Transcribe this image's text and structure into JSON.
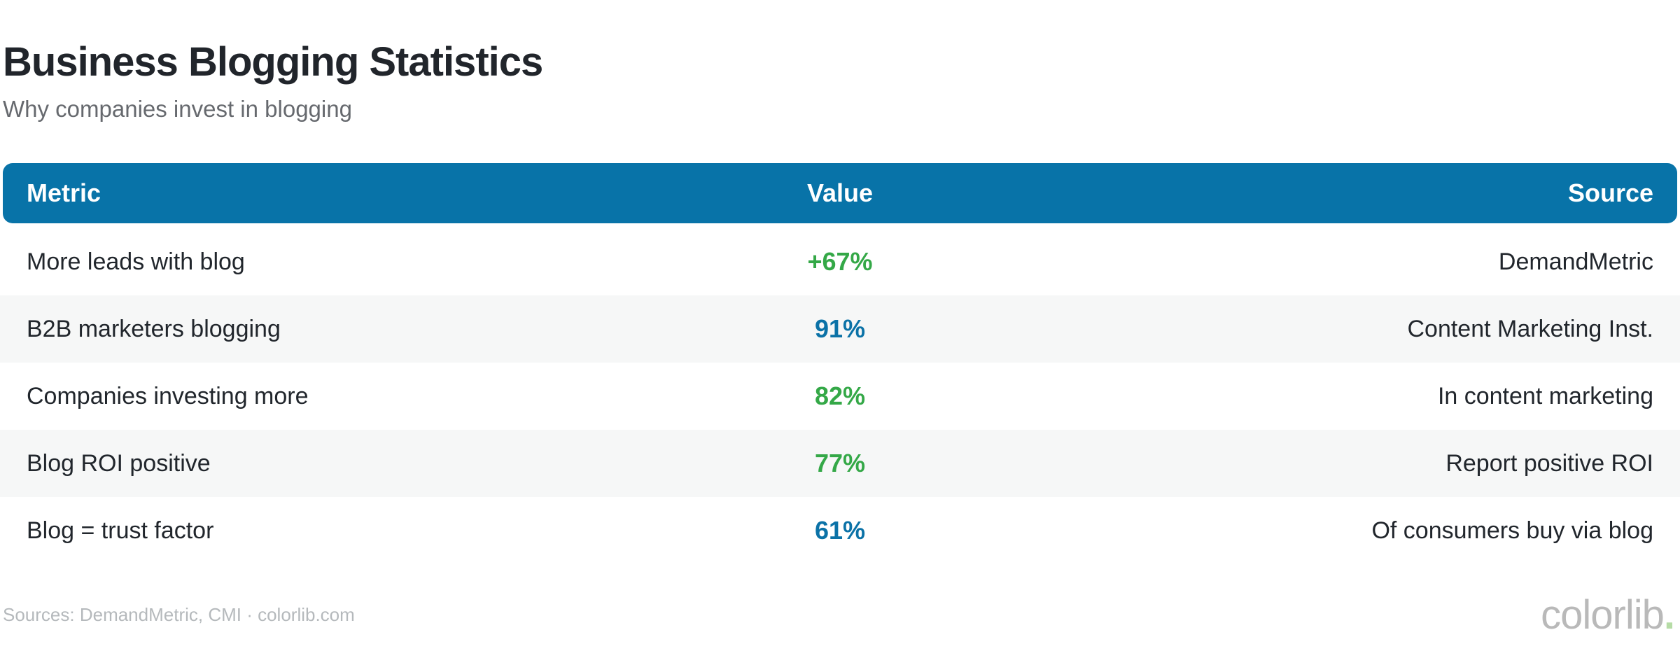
{
  "page": {
    "title": "Business Blogging Statistics",
    "subtitle": "Why companies invest in blogging"
  },
  "table": {
    "columns": {
      "metric": "Metric",
      "value": "Value",
      "source": "Source"
    },
    "rows": [
      {
        "metric": "More leads with blog",
        "value": "+67%",
        "source": "DemandMetric",
        "value_color": "#34a847"
      },
      {
        "metric": "B2B marketers blogging",
        "value": "91%",
        "source": "Content Marketing Inst.",
        "value_color": "#0b72a7"
      },
      {
        "metric": "Companies investing more",
        "value": "82%",
        "source": "In content marketing",
        "value_color": "#34a847"
      },
      {
        "metric": "Blog ROI positive",
        "value": "77%",
        "source": "Report positive ROI",
        "value_color": "#34a847"
      },
      {
        "metric": "Blog = trust factor",
        "value": "61%",
        "source": "Of consumers buy via blog",
        "value_color": "#0b72a7"
      }
    ]
  },
  "footer": {
    "sources_text": "Sources: DemandMetric, CMI · colorlib.com",
    "logo_text": "colorlib",
    "logo_dot": "."
  },
  "colors": {
    "header_bg": "#0873a8",
    "header_text": "#ffffff",
    "green_value": "#34a847",
    "blue_value": "#0b72a7",
    "row_alt_bg": "#f6f7f7",
    "title_text": "#21252b",
    "subtitle_text": "#66696e",
    "row_text": "#21262c",
    "footer_text": "#b5b9bc",
    "logo_gray": "#b9b9b9",
    "logo_dot_green": "#b6dca6"
  },
  "chart_data": {
    "type": "table",
    "title": "Business Blogging Statistics",
    "subtitle": "Why companies invest in blogging",
    "columns": [
      "Metric",
      "Value",
      "Source"
    ],
    "rows": [
      [
        "More leads with blog",
        "+67%",
        "DemandMetric"
      ],
      [
        "B2B marketers blogging",
        "91%",
        "Content Marketing Inst."
      ],
      [
        "Companies investing more",
        "82%",
        "In content marketing"
      ],
      [
        "Blog ROI positive",
        "77%",
        "Report positive ROI"
      ],
      [
        "Blog = trust factor",
        "61%",
        "Of consumers buy via blog"
      ]
    ],
    "values_numeric": [
      67,
      91,
      82,
      77,
      61
    ],
    "value_color_semantics": "green = growth/positive stat, blue = share/percentage stat",
    "layout": "alternating row stripes, blue rounded header bar, value column centered, source column right-aligned"
  }
}
